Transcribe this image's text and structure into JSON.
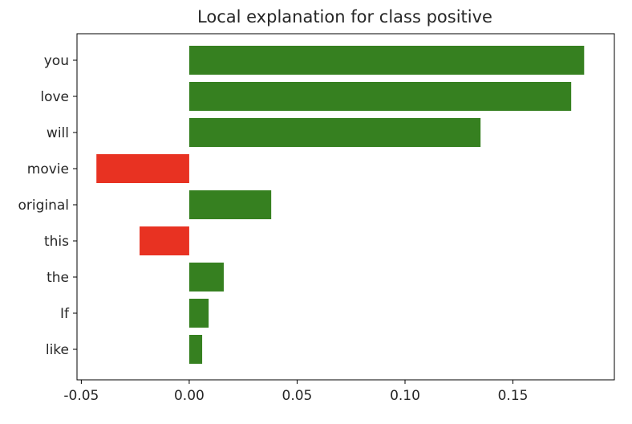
{
  "chart_data": {
    "type": "bar",
    "orientation": "horizontal",
    "title": "Local explanation for class positive",
    "xlabel": "",
    "ylabel": "",
    "categories": [
      "you",
      "love",
      "will",
      "movie",
      "original",
      "this",
      "the",
      "If",
      "like"
    ],
    "values": [
      0.183,
      0.177,
      0.135,
      -0.043,
      0.038,
      -0.023,
      0.016,
      0.009,
      0.006
    ],
    "xlim": [
      -0.052,
      0.197
    ],
    "x_ticks": [
      -0.05,
      0.0,
      0.05,
      0.1,
      0.15
    ],
    "x_tick_labels": [
      "-0.05",
      "0.00",
      "0.05",
      "0.10",
      "0.15"
    ],
    "grid": false,
    "legend": "none",
    "colors": {
      "positive": "#368020",
      "negative": "#e83222",
      "axis": "#000000",
      "text": "#262626"
    }
  }
}
